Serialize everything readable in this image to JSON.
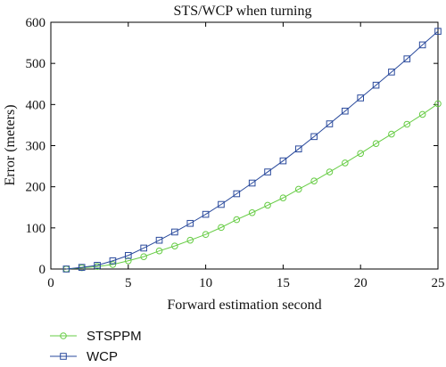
{
  "chart_data": {
    "type": "line",
    "title": "STS/WCP when turning",
    "xlabel": "Forward estimation second",
    "ylabel": "Error (meters)",
    "xlim": [
      0,
      25
    ],
    "ylim": [
      0,
      600
    ],
    "xticks": [
      0,
      5,
      10,
      15,
      20,
      25
    ],
    "yticks": [
      0,
      100,
      200,
      300,
      400,
      500,
      600
    ],
    "grid": false,
    "legend_position": "bottom-left, outside plot",
    "x": [
      1,
      2,
      3,
      4,
      5,
      6,
      7,
      8,
      9,
      10,
      11,
      12,
      13,
      14,
      15,
      16,
      17,
      18,
      19,
      20,
      21,
      22,
      23,
      24,
      25
    ],
    "series": [
      {
        "name": "STSPPM",
        "color": "#66cc44",
        "marker": "circle",
        "values": [
          0,
          3,
          6,
          11,
          20,
          30,
          44,
          56,
          70,
          84,
          101,
          120,
          137,
          155,
          173,
          194,
          214,
          236,
          258,
          281,
          305,
          328,
          352,
          376,
          402
        ]
      },
      {
        "name": "WCP",
        "color": "#2a4a9c",
        "marker": "square",
        "values": [
          0,
          4,
          9,
          20,
          33,
          51,
          70,
          90,
          111,
          133,
          157,
          183,
          209,
          236,
          263,
          292,
          322,
          353,
          384,
          416,
          447,
          479,
          511,
          545,
          578
        ]
      }
    ]
  }
}
